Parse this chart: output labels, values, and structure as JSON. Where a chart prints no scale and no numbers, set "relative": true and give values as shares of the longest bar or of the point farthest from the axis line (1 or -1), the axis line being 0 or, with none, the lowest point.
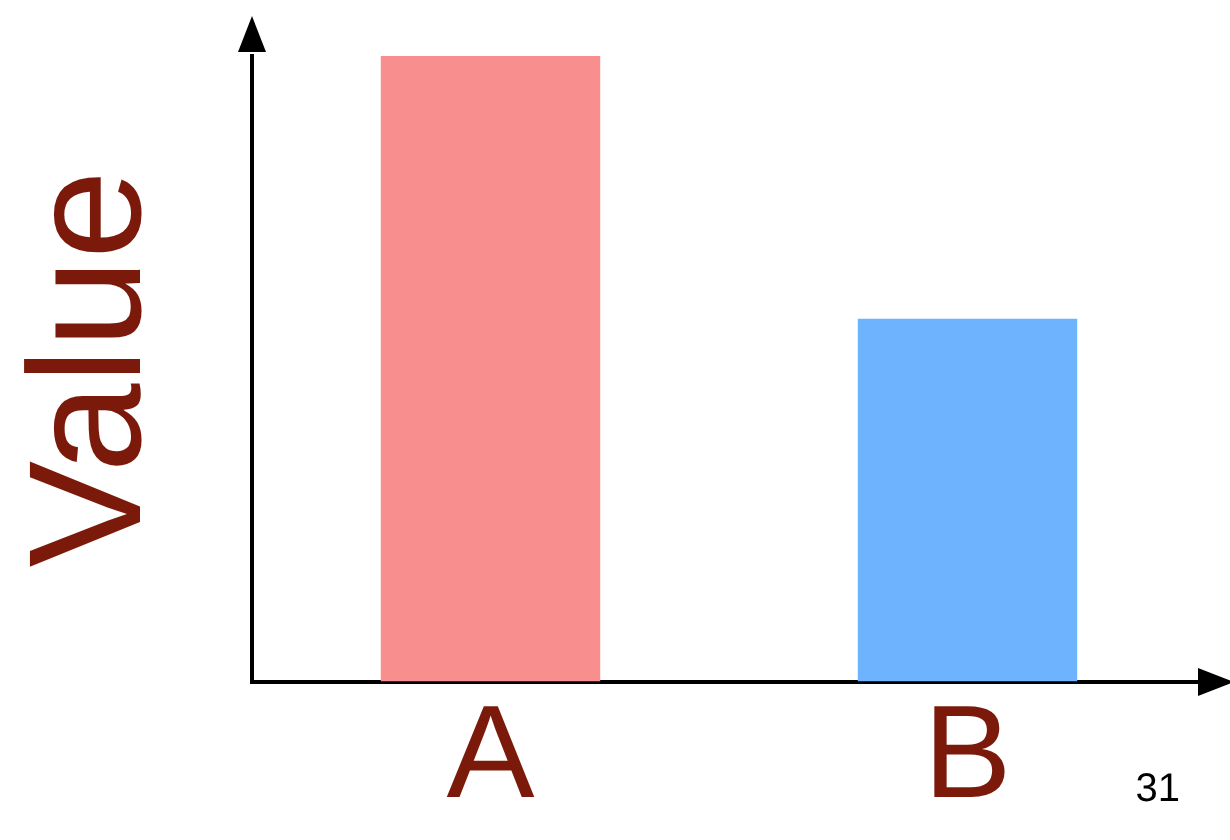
{
  "chart_data": {
    "type": "bar",
    "ylabel": "Value",
    "categories": [
      "A",
      "B"
    ],
    "relative": true,
    "values": [
      1,
      0.58
    ],
    "colors": [
      "#f88e8e",
      "#6db3fd"
    ],
    "grid": false,
    "legend": false,
    "annotations": [
      "31"
    ]
  }
}
